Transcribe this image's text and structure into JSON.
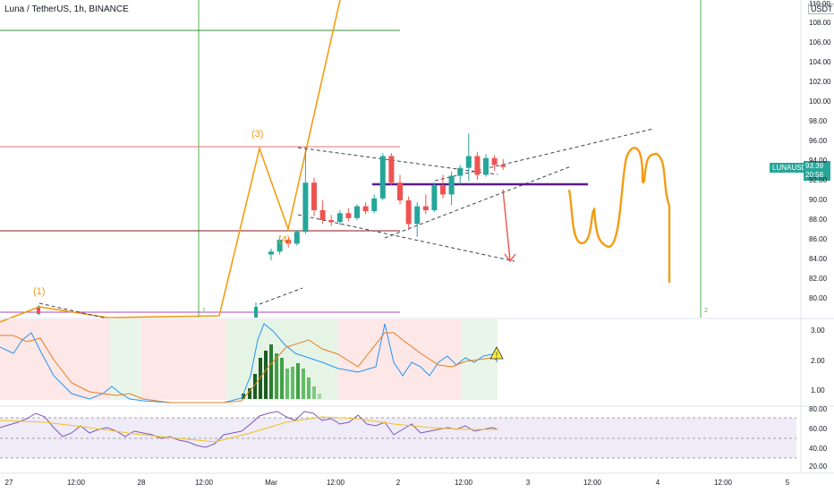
{
  "header": {
    "title": "Luna / TetherUS, 1h, BINANCE",
    "scale_currency": "USDT"
  },
  "price_panel": {
    "symbol": "LUNAUSDT",
    "last_price": "93.39",
    "countdown": "20:58",
    "y_ticks": [
      "108.00",
      "106.00",
      "104.00",
      "102.00",
      "100.00",
      "98.00",
      "96.00",
      "94.00",
      "92.00",
      "90.00",
      "88.00",
      "86.00",
      "84.00",
      "82.00",
      "80.00"
    ],
    "top_tick": "110.00"
  },
  "indicator1": {
    "y_ticks": [
      "3.00",
      "2.00",
      "1.00"
    ]
  },
  "indicator2": {
    "y_ticks": [
      "80.00",
      "60.00",
      "40.00",
      "20.00"
    ]
  },
  "time_axis": {
    "labels": [
      "27",
      "12:00",
      "28",
      "12:00",
      "Mar",
      "12:00",
      "2",
      "12:00",
      "3",
      "12:00",
      "4",
      "12:00",
      "5"
    ]
  },
  "annotations": {
    "wave_1": "(1)",
    "wave_3": "(3)",
    "wave_4": "(4)",
    "marker_left": "1",
    "marker_right": "2"
  },
  "colors": {
    "bullish": "#26a69a",
    "bearish": "#ef5350",
    "drawing_orange": "#f39c12",
    "purple_line": "#5b1a8b",
    "green_vertical": "#4caf50",
    "rsi_line": "#7e57c2"
  },
  "chart_data": {
    "type": "candlestick",
    "candles": [
      {
        "o": 84.5,
        "h": 85.1,
        "l": 83.9,
        "c": 84.8
      },
      {
        "o": 84.8,
        "h": 86.4,
        "l": 84.5,
        "c": 86.0
      },
      {
        "o": 86.0,
        "h": 86.2,
        "l": 85.2,
        "c": 85.6
      },
      {
        "o": 85.6,
        "h": 87.0,
        "l": 85.4,
        "c": 86.8
      },
      {
        "o": 86.8,
        "h": 95.5,
        "l": 86.6,
        "c": 91.8
      },
      {
        "o": 91.8,
        "h": 92.3,
        "l": 88.4,
        "c": 89.0
      },
      {
        "o": 89.0,
        "h": 90.0,
        "l": 87.6,
        "c": 88.0
      },
      {
        "o": 88.0,
        "h": 88.5,
        "l": 87.4,
        "c": 87.8
      },
      {
        "o": 87.8,
        "h": 89.0,
        "l": 87.5,
        "c": 88.7
      },
      {
        "o": 88.7,
        "h": 89.2,
        "l": 87.9,
        "c": 88.2
      },
      {
        "o": 88.2,
        "h": 89.6,
        "l": 88.0,
        "c": 89.4
      },
      {
        "o": 89.4,
        "h": 89.8,
        "l": 88.6,
        "c": 88.9
      },
      {
        "o": 88.9,
        "h": 90.6,
        "l": 88.7,
        "c": 90.2
      },
      {
        "o": 90.2,
        "h": 94.8,
        "l": 90.0,
        "c": 94.5
      },
      {
        "o": 94.5,
        "h": 94.8,
        "l": 91.5,
        "c": 91.8
      },
      {
        "o": 91.8,
        "h": 92.6,
        "l": 89.6,
        "c": 90.0
      },
      {
        "o": 90.0,
        "h": 90.4,
        "l": 87.0,
        "c": 87.6
      },
      {
        "o": 87.6,
        "h": 89.8,
        "l": 86.3,
        "c": 89.4
      },
      {
        "o": 89.4,
        "h": 90.6,
        "l": 88.6,
        "c": 89.0
      },
      {
        "o": 89.0,
        "h": 91.8,
        "l": 88.8,
        "c": 91.5
      },
      {
        "o": 91.5,
        "h": 92.6,
        "l": 90.2,
        "c": 90.6
      },
      {
        "o": 90.6,
        "h": 92.9,
        "l": 89.5,
        "c": 92.5
      },
      {
        "o": 92.5,
        "h": 93.6,
        "l": 91.6,
        "c": 93.3
      },
      {
        "o": 93.3,
        "h": 96.8,
        "l": 92.0,
        "c": 94.5
      },
      {
        "o": 94.5,
        "h": 94.9,
        "l": 92.1,
        "c": 92.6
      },
      {
        "o": 92.6,
        "h": 94.7,
        "l": 92.4,
        "c": 94.3
      },
      {
        "o": 94.3,
        "h": 94.6,
        "l": 93.0,
        "c": 93.6
      },
      {
        "o": 93.6,
        "h": 94.2,
        "l": 93.1,
        "c": 93.4
      }
    ],
    "horizontal_levels": [
      95.5,
      87.2,
      107.4
    ],
    "target_level": 92.4
  }
}
